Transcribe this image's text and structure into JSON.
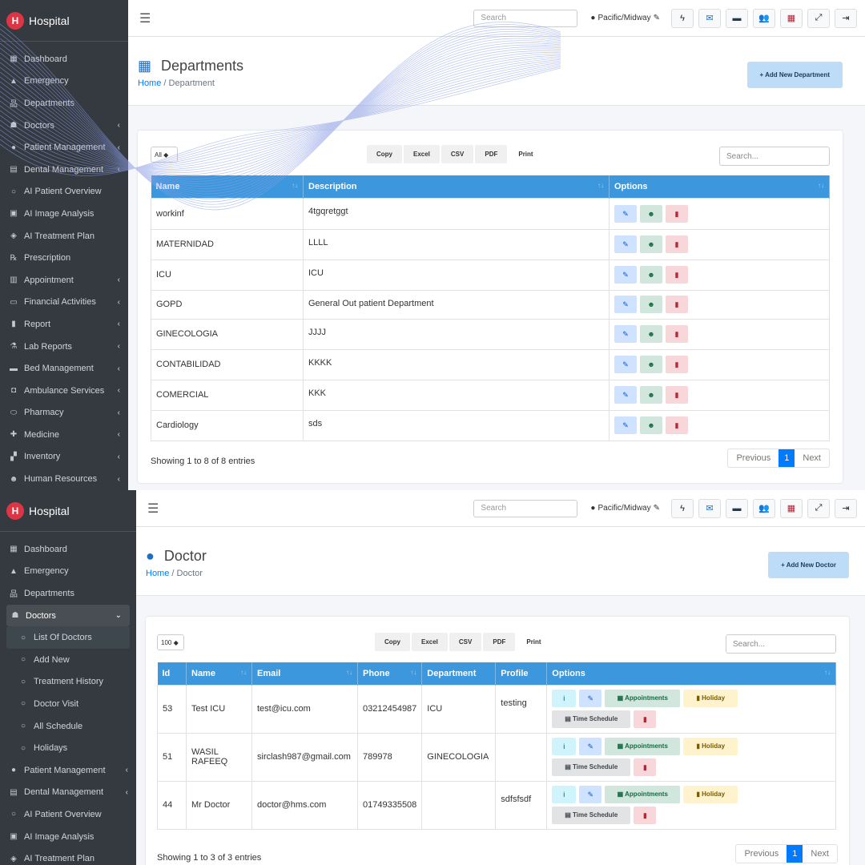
{
  "panel1": {
    "brand": "Hospital",
    "nav": [
      {
        "label": "Dashboard",
        "icon": "grid-icon",
        "chev": false
      },
      {
        "label": "Emergency",
        "icon": "warning-icon",
        "chev": false
      },
      {
        "label": "Departments",
        "icon": "sitemap-icon",
        "chev": false
      },
      {
        "label": "Doctors",
        "icon": "doctor-icon",
        "chev": true
      },
      {
        "label": "Patient Management",
        "icon": "user-icon",
        "chev": true
      },
      {
        "label": "Dental Management",
        "icon": "table-icon",
        "chev": true
      },
      {
        "label": "AI Patient Overview",
        "icon": "user-outline-icon",
        "chev": false
      },
      {
        "label": "AI Image Analysis",
        "icon": "image-icon",
        "chev": false
      },
      {
        "label": "AI Treatment Plan",
        "icon": "plan-icon",
        "chev": false
      },
      {
        "label": "Prescription",
        "icon": "prescription-icon",
        "chev": false
      },
      {
        "label": "Appointment",
        "icon": "calendar-icon",
        "chev": true
      },
      {
        "label": "Financial Activities",
        "icon": "money-icon",
        "chev": true
      },
      {
        "label": "Report",
        "icon": "file-icon",
        "chev": true
      },
      {
        "label": "Lab Reports",
        "icon": "flask-icon",
        "chev": true
      },
      {
        "label": "Bed Management",
        "icon": "bed-icon",
        "chev": true
      },
      {
        "label": "Ambulance Services",
        "icon": "ambulance-icon",
        "chev": true
      },
      {
        "label": "Pharmacy",
        "icon": "pills-icon",
        "chev": true
      },
      {
        "label": "Medicine",
        "icon": "medicine-icon",
        "chev": true
      },
      {
        "label": "Inventory",
        "icon": "boxes-icon",
        "chev": true
      },
      {
        "label": "Human Resources",
        "icon": "users-icon",
        "chev": true
      }
    ],
    "topbar": {
      "search_placeholder": "Search",
      "timezone": "Pacific/Midway"
    },
    "page_title": "Departments",
    "crumb_home": "Home",
    "crumb_current": "Department",
    "add_button": "+ Add New Department",
    "length_value": "All",
    "export_buttons": [
      "Copy",
      "Excel",
      "CSV",
      "PDF",
      "Print"
    ],
    "table_search_placeholder": "Search...",
    "columns": [
      "Name",
      "Description",
      "Options"
    ],
    "rows": [
      {
        "name": "workinf",
        "desc": "4tgqretggt"
      },
      {
        "name": "MATERNIDAD",
        "desc": "LLLL"
      },
      {
        "name": "ICU",
        "desc": "ICU"
      },
      {
        "name": "GOPD",
        "desc": "General Out patient Department"
      },
      {
        "name": "GINECOLOGIA",
        "desc": "JJJJ"
      },
      {
        "name": "CONTABILIDAD",
        "desc": "KKKK"
      },
      {
        "name": "COMERCIAL",
        "desc": "KKK"
      },
      {
        "name": "Cardiology",
        "desc": "sds"
      }
    ],
    "showing": "Showing 1 to 8 of 8 entries",
    "pager": {
      "prev": "Previous",
      "page": "1",
      "next": "Next"
    }
  },
  "panel2": {
    "brand": "Hospital",
    "nav": [
      {
        "label": "Dashboard",
        "icon": "grid-icon",
        "type": "main"
      },
      {
        "label": "Emergency",
        "icon": "warning-icon",
        "type": "main"
      },
      {
        "label": "Departments",
        "icon": "sitemap-icon",
        "type": "main"
      },
      {
        "label": "Doctors",
        "icon": "doctor-icon",
        "type": "open"
      },
      {
        "label": "List Of Doctors",
        "icon": "circle-icon",
        "type": "active-sub"
      },
      {
        "label": "Add New",
        "icon": "circle-icon",
        "type": "sub"
      },
      {
        "label": "Treatment History",
        "icon": "circle-icon",
        "type": "sub"
      },
      {
        "label": "Doctor Visit",
        "icon": "circle-icon",
        "type": "sub"
      },
      {
        "label": "All Schedule",
        "icon": "circle-icon",
        "type": "sub"
      },
      {
        "label": "Holidays",
        "icon": "circle-icon",
        "type": "sub"
      },
      {
        "label": "Patient Management",
        "icon": "user-icon",
        "type": "main",
        "chev": true
      },
      {
        "label": "Dental Management",
        "icon": "table-icon",
        "type": "main",
        "chev": true
      },
      {
        "label": "AI Patient Overview",
        "icon": "user-outline-icon",
        "type": "main"
      },
      {
        "label": "AI Image Analysis",
        "icon": "image-icon",
        "type": "main"
      },
      {
        "label": "AI Treatment Plan",
        "icon": "plan-icon",
        "type": "main"
      }
    ],
    "topbar": {
      "search_placeholder": "Search",
      "timezone": "Pacific/Midway"
    },
    "page_title": "Doctor",
    "crumb_home": "Home",
    "crumb_current": "Doctor",
    "add_button": "+ Add New Doctor",
    "length_value": "100",
    "export_buttons": [
      "Copy",
      "Excel",
      "CSV",
      "PDF",
      "Print"
    ],
    "table_search_placeholder": "Search...",
    "columns": [
      "Id",
      "Name",
      "Email",
      "Phone",
      "Department",
      "Profile",
      "Options"
    ],
    "rows": [
      {
        "id": "53",
        "name": "Test ICU",
        "email": "test@icu.com",
        "phone": "03212454987",
        "dept": "ICU",
        "profile": "testing"
      },
      {
        "id": "51",
        "name": "WASIL RAFEEQ",
        "email": "sirclash987@gmail.com",
        "phone": "789978",
        "dept": "GINECOLOGIA",
        "profile": ""
      },
      {
        "id": "44",
        "name": "Mr Doctor",
        "email": "doctor@hms.com",
        "phone": "01749335508",
        "dept": "",
        "profile": "sdfsfsdf"
      }
    ],
    "option_labels": {
      "appointments": "Appointments",
      "holiday": "Holiday",
      "time_schedule": "Time Schedule"
    },
    "showing": "Showing 1 to 3 of 3 entries",
    "pager": {
      "prev": "Previous",
      "page": "1",
      "next": "Next"
    }
  },
  "colors": {
    "sidebar": "#343a40",
    "header_blue": "#3c97dd",
    "primary": "#007bff"
  }
}
